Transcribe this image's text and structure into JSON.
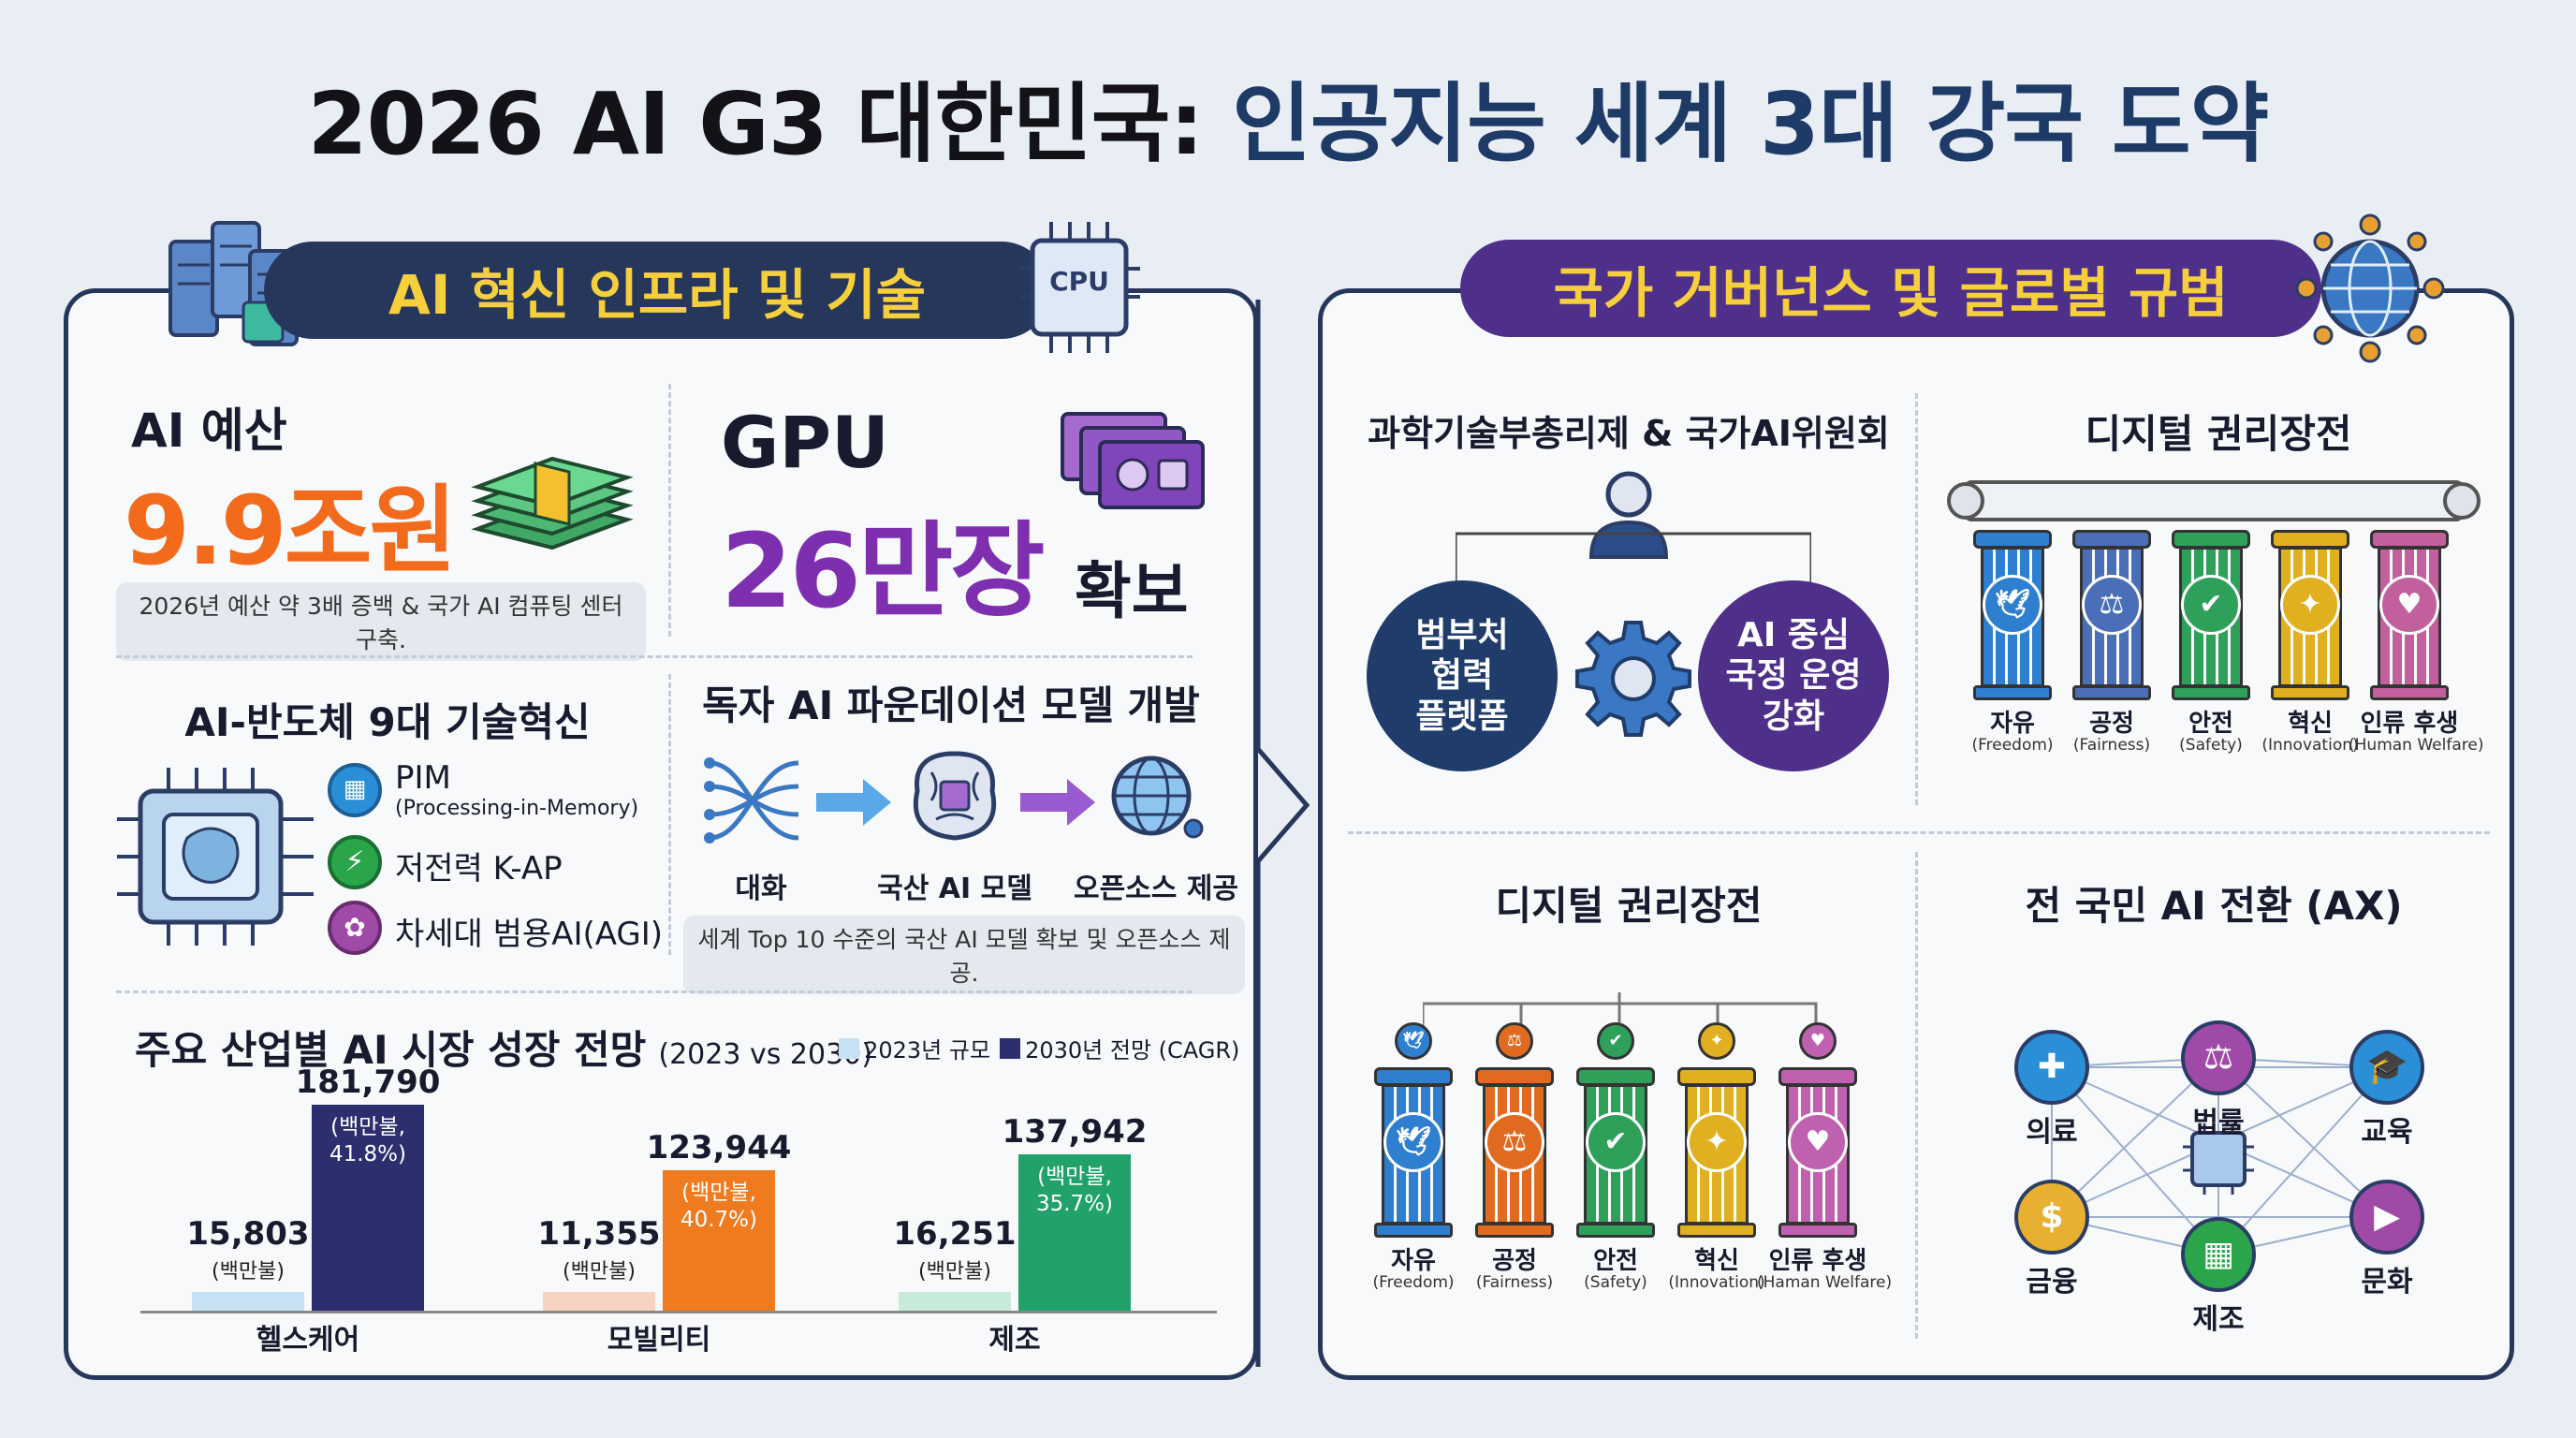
{
  "title": {
    "part1": "2026 AI G3 대한민국:",
    "part2": "인공지능 세계 3대 강국 도약"
  },
  "left": {
    "ribbon": "AI 혁신 인프라 및 기술",
    "cpu_chip_label": "CPU",
    "budget": {
      "label": "AI 예산",
      "value": "9.9조원",
      "note": "2026년 예산 약 3배 증백 & 국가 AI 컴퓨팅 센터 구축."
    },
    "gpu": {
      "label": "GPU",
      "value": "26만장",
      "suffix": "확보"
    },
    "semi": {
      "title": "AI-반도체 9대 기술혁신",
      "items": [
        {
          "label": "PIM",
          "sub": "(Processing-in-Memory)",
          "icon": "memory-chip-icon",
          "color": "#2a8fd6"
        },
        {
          "label": "저전력 K-AP",
          "icon": "lightning-icon",
          "color": "#2aa54a"
        },
        {
          "label": "차세대 범용AI(AGI)",
          "icon": "brain-icon",
          "color": "#a04aa8"
        }
      ]
    },
    "foundation": {
      "title": "독자 AI 파운데이션 모델 개발",
      "steps": [
        "대화",
        "국산 AI 모델",
        "오픈소스 제공"
      ],
      "note": "세계 Top 10 수준의 국산 AI 모델 확보 및 오픈소스 제공."
    },
    "market": {
      "title": "주요 산업별 AI 시장 성장 전망",
      "subtitle": "(2023 vs 2030)",
      "legend": [
        "2023년 규모",
        "2030년 전망 (CAGR)"
      ]
    }
  },
  "right": {
    "ribbon": "국가 거버넌스 및 글로벌 규범",
    "governance": {
      "title": "과학기술부총리제 & 국가AI위원회",
      "left_circle": "범부처\n협력\n플렛폼",
      "right_circle": "AI 중심\n국정 운영\n강화"
    },
    "rights_top": {
      "title": "디지털 권리장전"
    },
    "rights_bottom": {
      "title": "디지털 권리장전"
    },
    "pillars": [
      {
        "label": "자유",
        "sub": "(Freedom)",
        "color": "#2e7fd0",
        "icon": "dove-icon"
      },
      {
        "label": "공정",
        "sub": "(Fairness)",
        "color": "#4a6fb8",
        "icon": "scales-icon"
      },
      {
        "label": "안전",
        "sub": "(Safety)",
        "color": "#2ea05a",
        "icon": "shield-icon"
      },
      {
        "label": "혁신",
        "sub": "(Innovation)",
        "color": "#e0b020",
        "icon": "lightbulb-icon"
      },
      {
        "label": "인류 후생",
        "sub": "(Human Welfare)",
        "color": "#c2609e",
        "icon": "heart-hands-icon"
      }
    ],
    "pillars_bottom_subs": [
      "(Freedom)",
      "(Fairness)",
      "(Safety)",
      "(Innovation)",
      "(Haman Welfare)"
    ],
    "pillars_bottom_colors": [
      "#2e7fd0",
      "#e06a20",
      "#2ea05a",
      "#e0b020",
      "#c060b0"
    ],
    "ax": {
      "title": "전 국민 AI 전환 (AX)",
      "nodes": [
        {
          "label": "법률",
          "color": "#a04aa8",
          "icon": "gavel-icon"
        },
        {
          "label": "교육",
          "color": "#2a8fd6",
          "icon": "graduation-cap-icon"
        },
        {
          "label": "문화",
          "color": "#a04aa8",
          "icon": "film-icon"
        },
        {
          "label": "제조",
          "color": "#2aa54a",
          "icon": "factory-icon"
        },
        {
          "label": "금융",
          "color": "#e8b030",
          "icon": "coins-icon"
        },
        {
          "label": "의료",
          "color": "#2a8fd6",
          "icon": "medical-cross-icon"
        }
      ]
    }
  },
  "chart_data": {
    "type": "bar",
    "title": "주요 산업별 AI 시장 성장 전망",
    "categories": [
      "헬스케어",
      "모빌리티",
      "제조"
    ],
    "series": [
      {
        "name": "2023년 규모",
        "values": [
          15803,
          11355,
          16251
        ],
        "labels": [
          "15,803",
          "11,355",
          "16,251"
        ],
        "unit": "(백만불)",
        "colors": [
          "#c6e2f4",
          "#f8d2c0",
          "#c8ead8"
        ]
      },
      {
        "name": "2030년 전망 (CAGR)",
        "values": [
          181790,
          123944,
          137942
        ],
        "labels": [
          "181,790",
          "123,944",
          "137,942"
        ],
        "cagr": [
          "41.8%",
          "40.7%",
          "35.7%"
        ],
        "unit_bar": "(백만불,",
        "colors": [
          "#2c2e6e",
          "#f07a1e",
          "#21a26a"
        ]
      }
    ],
    "ylim": [
      0,
      190000
    ]
  }
}
